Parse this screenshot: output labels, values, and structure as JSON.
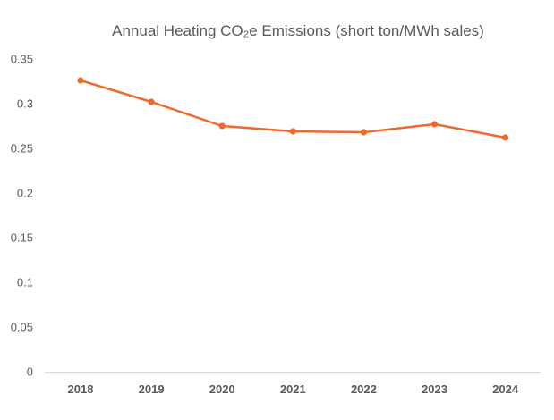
{
  "chart_data": {
    "type": "line",
    "title": "Annual Heating CO₂e Emissions (short ton/MWh sales)",
    "xlabel": "",
    "ylabel": "",
    "categories": [
      "2018",
      "2019",
      "2020",
      "2021",
      "2022",
      "2023",
      "2024"
    ],
    "series": [
      {
        "values": [
          0.326,
          0.302,
          0.275,
          0.269,
          0.268,
          0.277,
          0.262
        ],
        "color": "#ED6A2E"
      }
    ],
    "ylim": [
      0,
      0.35
    ],
    "yticks": [
      "0",
      "0.05",
      "0.1",
      "0.15",
      "0.2",
      "0.25",
      "0.3",
      "0.35"
    ],
    "grid": false,
    "legend": "none",
    "axis_color": "#D9D9D9",
    "text_color": "#595959"
  }
}
